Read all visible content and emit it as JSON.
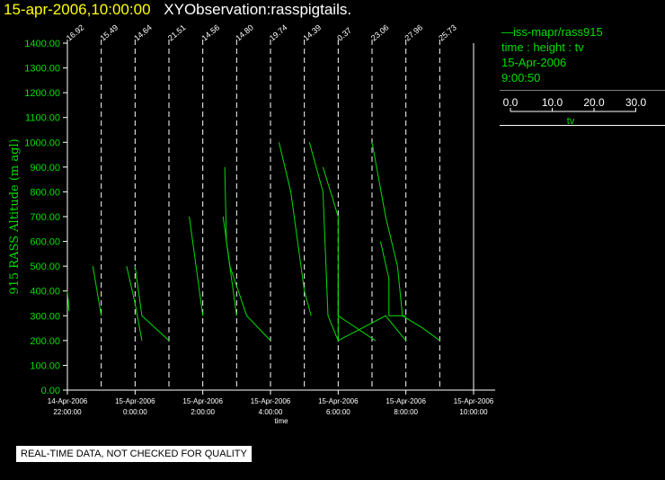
{
  "header": {
    "date_time": "15-apr-2006,10:00:00",
    "observation": "XYObservation:rasspigtails."
  },
  "legend": {
    "series_label": "iss-mapr/rass915",
    "kind": "time : height : tv",
    "date": "15-Apr-2006",
    "time": "9:00:50",
    "scale_ticks": [
      "0.0",
      "10.0",
      "20.0",
      "30.0"
    ],
    "scale_label": "tv"
  },
  "notice": "REAL-TIME DATA, NOT CHECKED FOR QUALITY",
  "chart_data": {
    "type": "line",
    "ylabel": "915 RASS Altitude (m agl)",
    "xlabel": "time",
    "ylim": [
      0,
      1400
    ],
    "y_ticks": [
      "0.00",
      "100.00",
      "200.00",
      "300.00",
      "400.00",
      "500.00",
      "600.00",
      "700.00",
      "800.00",
      "900.00",
      "1000.00",
      "1100.00",
      "1200.00",
      "1300.00",
      "1400.00"
    ],
    "xlim_hours": [
      22,
      34
    ],
    "x_ticks": [
      {
        "h": 22,
        "date": "14-Apr-2006",
        "time": "22:00:00"
      },
      {
        "h": 24,
        "date": "15-Apr-2006",
        "time": "0:00:00"
      },
      {
        "h": 26,
        "date": "15-Apr-2006",
        "time": "2:00:00"
      },
      {
        "h": 28,
        "date": "15-Apr-2006",
        "time": "4:00:00"
      },
      {
        "h": 30,
        "date": "15-Apr-2006",
        "time": "6:00:00"
      },
      {
        "h": 32,
        "date": "15-Apr-2006",
        "time": "8:00:00"
      },
      {
        "h": 34,
        "date": "15-Apr-2006",
        "time": "10:00:00"
      }
    ],
    "profiles": [
      {
        "h": 22,
        "label": "16.92",
        "points": [
          [
            22.0,
            400
          ],
          [
            22.05,
            320
          ]
        ]
      },
      {
        "h": 23,
        "label": "15.49",
        "points": [
          [
            22.75,
            500
          ],
          [
            23.0,
            300
          ]
        ]
      },
      {
        "h": 24,
        "label": "14.64",
        "points": [
          [
            23.75,
            500
          ],
          [
            24.0,
            350
          ],
          [
            24.2,
            200
          ]
        ]
      },
      {
        "h": 25,
        "label": "21.51",
        "points": [
          [
            24.0,
            500
          ],
          [
            24.2,
            300
          ],
          [
            25.0,
            200
          ]
        ]
      },
      {
        "h": 26,
        "label": "14.56",
        "points": [
          [
            25.6,
            700
          ],
          [
            25.7,
            600
          ],
          [
            26.0,
            300
          ]
        ]
      },
      {
        "h": 27,
        "label": "14.80",
        "points": [
          [
            26.6,
            700
          ],
          [
            26.8,
            500
          ],
          [
            27.3,
            300
          ],
          [
            28.0,
            200
          ]
        ]
      },
      {
        "h": 27.3,
        "label": "",
        "points": [
          [
            26.65,
            900
          ],
          [
            26.7,
            600
          ],
          [
            27.0,
            300
          ]
        ]
      },
      {
        "h": 28,
        "label": "19.74",
        "points": [
          [
            28.25,
            1000
          ],
          [
            28.6,
            800
          ],
          [
            29.0,
            400
          ],
          [
            29.2,
            300
          ]
        ]
      },
      {
        "h": 29,
        "label": "14.39",
        "points": [
          [
            29.15,
            1000
          ],
          [
            29.55,
            800
          ],
          [
            29.7,
            300
          ],
          [
            30.0,
            200
          ]
        ]
      },
      {
        "h": 30,
        "label": "0.37",
        "points": [
          [
            29.55,
            900
          ],
          [
            30.0,
            700
          ],
          [
            30.0,
            300
          ],
          [
            31.1,
            200
          ]
        ]
      },
      {
        "h": 30.2,
        "label": "",
        "points": [
          [
            30.0,
            450
          ],
          [
            30.0,
            200
          ],
          [
            31.4,
            300
          ],
          [
            32.0,
            200
          ]
        ]
      },
      {
        "h": 31,
        "label": "23.06",
        "points": [
          [
            31.0,
            1000
          ],
          [
            31.4,
            700
          ],
          [
            31.75,
            500
          ],
          [
            31.9,
            300
          ],
          [
            32.5,
            250
          ],
          [
            33.0,
            200
          ]
        ]
      },
      {
        "h": 31.5,
        "label": "",
        "points": [
          [
            31.25,
            600
          ],
          [
            31.5,
            450
          ],
          [
            31.5,
            300
          ],
          [
            32.0,
            300
          ]
        ]
      },
      {
        "h": 32,
        "label": "27.96",
        "points": []
      },
      {
        "h": 33,
        "label": "25.73",
        "points": []
      }
    ]
  }
}
